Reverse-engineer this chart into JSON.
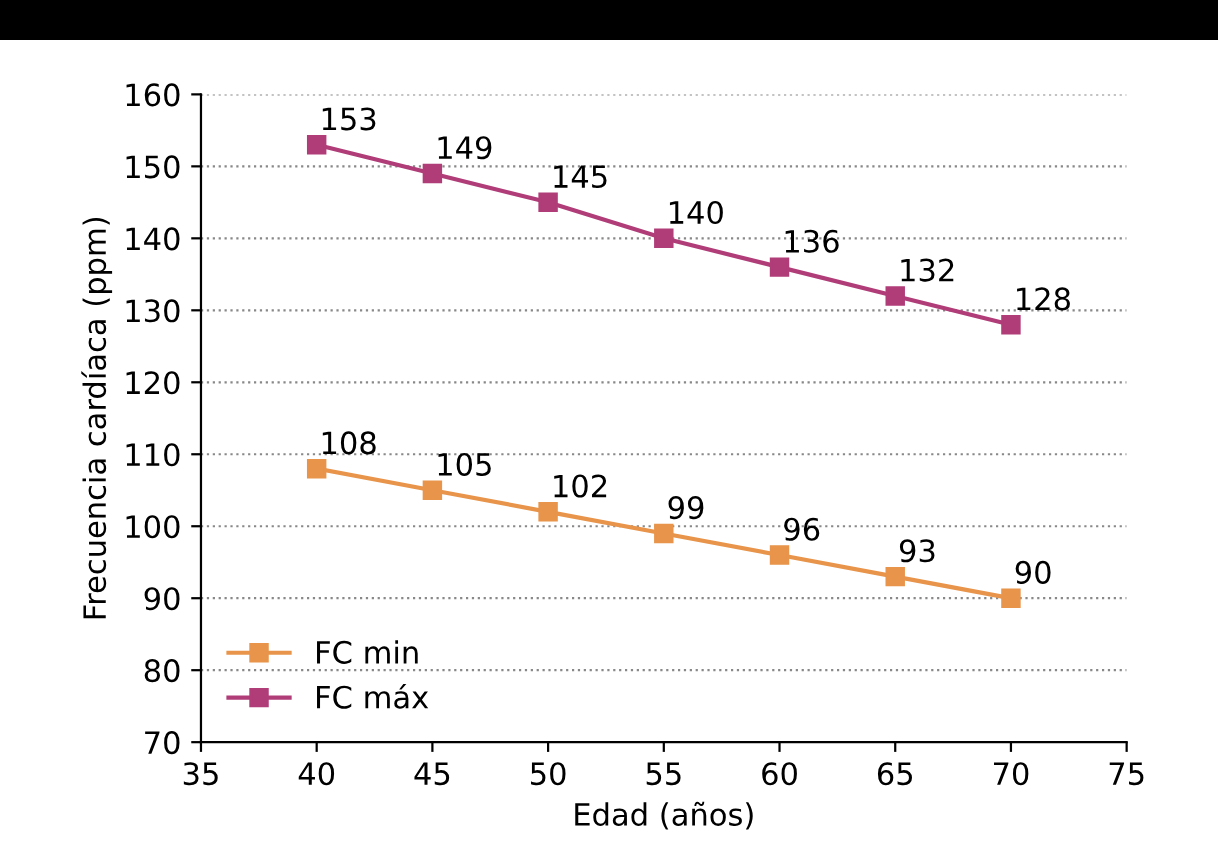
{
  "chart_data": {
    "type": "line",
    "xlabel": "Edad (años)",
    "ylabel": "Frecuencia cardíaca (ppm)",
    "x": [
      40,
      45,
      50,
      55,
      60,
      65,
      70
    ],
    "series": [
      {
        "name": "FC min",
        "color": "#e8944a",
        "values": [
          108,
          105,
          102,
          99,
          96,
          93,
          90
        ]
      },
      {
        "name": "FC máx",
        "color": "#b03c78",
        "values": [
          153,
          149,
          145,
          140,
          136,
          132,
          128
        ]
      }
    ],
    "xlim": [
      35,
      75
    ],
    "xticks": [
      35,
      40,
      45,
      50,
      55,
      60,
      65,
      70,
      75
    ],
    "ylim": [
      70,
      160
    ],
    "yticks": [
      70,
      80,
      90,
      100,
      110,
      120,
      130,
      140,
      150,
      160
    ],
    "grid": "y",
    "legend": "bottom left",
    "marker": "square",
    "line_style": "solid",
    "data_labels": true
  }
}
